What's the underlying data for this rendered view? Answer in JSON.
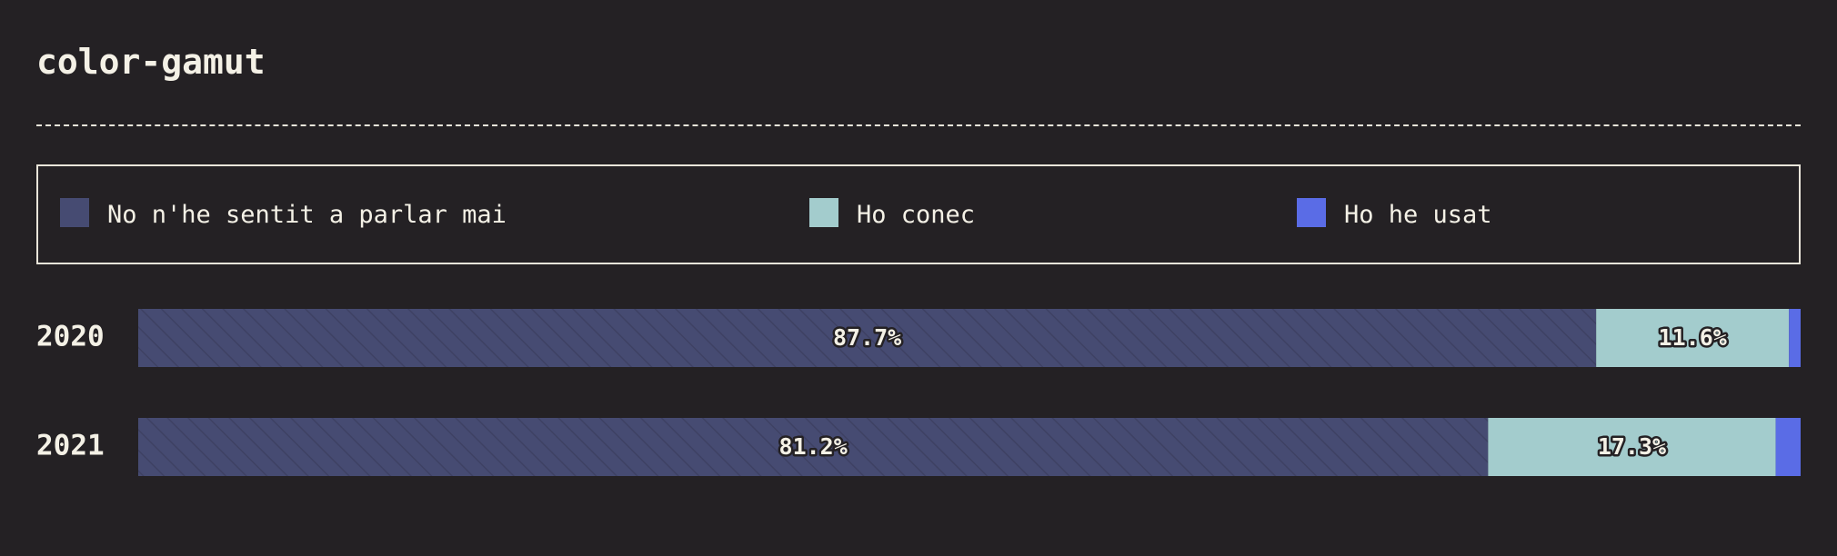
{
  "title": "color-gamut",
  "colors": {
    "background": "#242124",
    "text": "#f4f1e6",
    "never_heard": "#464b72",
    "know_it": "#a3cccd",
    "used_it": "#5a6ce6"
  },
  "legend": [
    {
      "label": "No n'he sentit a parlar mai",
      "color": "#464b72"
    },
    {
      "label": "Ho conec",
      "color": "#a3cccd"
    },
    {
      "label": "Ho he usat",
      "color": "#5a6ce6"
    }
  ],
  "chart_data": {
    "type": "bar",
    "orientation": "horizontal",
    "stacked": "percent",
    "title": "color-gamut",
    "categories": [
      "2020",
      "2021"
    ],
    "series": [
      {
        "name": "No n'he sentit a parlar mai",
        "color": "#464b72",
        "values": [
          87.7,
          81.2
        ],
        "labels": [
          "87.7%",
          "81.2%"
        ]
      },
      {
        "name": "Ho conec",
        "color": "#a3cccd",
        "values": [
          11.6,
          17.3
        ],
        "labels": [
          "11.6%",
          "17.3%"
        ]
      },
      {
        "name": "Ho he usat",
        "color": "#5a6ce6",
        "values": [
          0.8,
          1.5
        ],
        "labels": [
          "",
          ""
        ]
      }
    ],
    "xlim": [
      0,
      100
    ],
    "legend_position": "top",
    "grid": false
  }
}
